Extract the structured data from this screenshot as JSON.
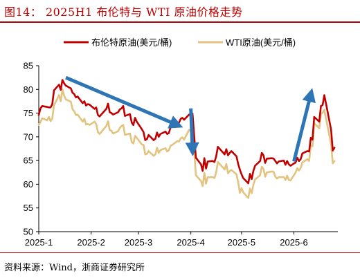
{
  "figure": {
    "title": "图14：  2025H1 布伦特与 WTI 原油价格走势",
    "source": "资料来源：Wind，浙商证券研究所"
  },
  "colors": {
    "brent": "#c00000",
    "wti": "#e2c37f",
    "arrow": "#2e75b6",
    "rule": "#b30000"
  },
  "chart_data": {
    "type": "line",
    "title": "",
    "xlabel": "",
    "ylabel": "",
    "ylim": [
      50,
      85
    ],
    "yticks": [
      50,
      55,
      60,
      65,
      70,
      75,
      80,
      85
    ],
    "x_range": [
      "2025-01-01",
      "2025-06-27"
    ],
    "xticks": [
      {
        "date": "2025-01-01",
        "label": "2025-1"
      },
      {
        "date": "2025-02-01",
        "label": "2025-2"
      },
      {
        "date": "2025-03-01",
        "label": "2025-3"
      },
      {
        "date": "2025-04-01",
        "label": "2025-4"
      },
      {
        "date": "2025-05-01",
        "label": "2025-5"
      },
      {
        "date": "2025-06-01",
        "label": "2025-6"
      }
    ],
    "grid": false,
    "legend": "top",
    "series": [
      {
        "name": "布伦特原油(美元/桶)",
        "color": "#c00000",
        "points": [
          [
            "2025-01-01",
            74.6
          ],
          [
            "2025-01-02",
            76.0
          ],
          [
            "2025-01-03",
            76.5
          ],
          [
            "2025-01-06",
            76.3
          ],
          [
            "2025-01-07",
            76.2
          ],
          [
            "2025-01-08",
            76.2
          ],
          [
            "2025-01-09",
            76.9
          ],
          [
            "2025-01-10",
            79.8
          ],
          [
            "2025-01-13",
            81.0
          ],
          [
            "2025-01-14",
            79.9
          ],
          [
            "2025-01-15",
            82.0
          ],
          [
            "2025-01-16",
            81.3
          ],
          [
            "2025-01-17",
            80.8
          ],
          [
            "2025-01-20",
            80.2
          ],
          [
            "2025-01-21",
            79.3
          ],
          [
            "2025-01-22",
            79.0
          ],
          [
            "2025-01-23",
            78.3
          ],
          [
            "2025-01-24",
            78.5
          ],
          [
            "2025-01-27",
            77.1
          ],
          [
            "2025-01-28",
            77.5
          ],
          [
            "2025-01-29",
            76.6
          ],
          [
            "2025-01-30",
            76.9
          ],
          [
            "2025-01-31",
            76.8
          ],
          [
            "2025-02-03",
            75.9
          ],
          [
            "2025-02-04",
            76.2
          ],
          [
            "2025-02-05",
            74.6
          ],
          [
            "2025-02-06",
            74.3
          ],
          [
            "2025-02-07",
            74.7
          ],
          [
            "2025-02-10",
            75.9
          ],
          [
            "2025-02-11",
            77.0
          ],
          [
            "2025-02-12",
            75.2
          ],
          [
            "2025-02-13",
            75.0
          ],
          [
            "2025-02-14",
            74.7
          ],
          [
            "2025-02-17",
            75.2
          ],
          [
            "2025-02-18",
            75.8
          ],
          [
            "2025-02-19",
            76.0
          ],
          [
            "2025-02-20",
            76.5
          ],
          [
            "2025-02-21",
            74.4
          ],
          [
            "2025-02-24",
            74.8
          ],
          [
            "2025-02-25",
            73.0
          ],
          [
            "2025-02-26",
            72.5
          ],
          [
            "2025-02-27",
            74.0
          ],
          [
            "2025-02-28",
            73.2
          ],
          [
            "2025-03-03",
            71.6
          ],
          [
            "2025-03-04",
            71.0
          ],
          [
            "2025-03-05",
            69.3
          ],
          [
            "2025-03-06",
            69.5
          ],
          [
            "2025-03-07",
            70.4
          ],
          [
            "2025-03-10",
            69.3
          ],
          [
            "2025-03-11",
            69.6
          ],
          [
            "2025-03-12",
            70.9
          ],
          [
            "2025-03-13",
            70.0
          ],
          [
            "2025-03-14",
            70.6
          ],
          [
            "2025-03-17",
            71.1
          ],
          [
            "2025-03-18",
            70.6
          ],
          [
            "2025-03-19",
            70.8
          ],
          [
            "2025-03-20",
            72.0
          ],
          [
            "2025-03-21",
            72.2
          ],
          [
            "2025-03-24",
            72.2
          ],
          [
            "2025-03-25",
            73.0
          ],
          [
            "2025-03-26",
            73.8
          ],
          [
            "2025-03-27",
            74.0
          ],
          [
            "2025-03-28",
            73.6
          ],
          [
            "2025-03-31",
            74.7
          ],
          [
            "2025-04-01",
            74.5
          ],
          [
            "2025-04-02",
            74.9
          ],
          [
            "2025-04-03",
            70.1
          ],
          [
            "2025-04-04",
            65.6
          ],
          [
            "2025-04-07",
            64.2
          ],
          [
            "2025-04-08",
            62.8
          ],
          [
            "2025-04-09",
            65.5
          ],
          [
            "2025-04-10",
            63.3
          ],
          [
            "2025-04-11",
            64.8
          ],
          [
            "2025-04-14",
            64.9
          ],
          [
            "2025-04-15",
            64.7
          ],
          [
            "2025-04-16",
            65.9
          ],
          [
            "2025-04-17",
            67.9
          ],
          [
            "2025-04-21",
            66.3
          ],
          [
            "2025-04-22",
            67.4
          ],
          [
            "2025-04-23",
            66.1
          ],
          [
            "2025-04-24",
            66.6
          ],
          [
            "2025-04-25",
            67.0
          ],
          [
            "2025-04-28",
            65.9
          ],
          [
            "2025-04-29",
            64.3
          ],
          [
            "2025-04-30",
            63.1
          ],
          [
            "2025-05-01",
            62.1
          ],
          [
            "2025-05-02",
            61.3
          ],
          [
            "2025-05-05",
            60.2
          ],
          [
            "2025-05-06",
            62.2
          ],
          [
            "2025-05-07",
            61.1
          ],
          [
            "2025-05-08",
            62.8
          ],
          [
            "2025-05-09",
            63.9
          ],
          [
            "2025-05-12",
            64.9
          ],
          [
            "2025-05-13",
            66.6
          ],
          [
            "2025-05-14",
            66.1
          ],
          [
            "2025-05-15",
            64.5
          ],
          [
            "2025-05-16",
            65.4
          ],
          [
            "2025-05-19",
            65.5
          ],
          [
            "2025-05-20",
            65.4
          ],
          [
            "2025-05-21",
            64.9
          ],
          [
            "2025-05-22",
            64.4
          ],
          [
            "2025-05-23",
            64.8
          ],
          [
            "2025-05-26",
            65.0
          ],
          [
            "2025-05-27",
            64.1
          ],
          [
            "2025-05-28",
            64.9
          ],
          [
            "2025-05-29",
            64.2
          ],
          [
            "2025-05-30",
            63.9
          ],
          [
            "2025-06-02",
            64.6
          ],
          [
            "2025-06-03",
            65.6
          ],
          [
            "2025-06-04",
            64.9
          ],
          [
            "2025-06-05",
            65.3
          ],
          [
            "2025-06-06",
            66.5
          ],
          [
            "2025-06-09",
            67.0
          ],
          [
            "2025-06-10",
            66.9
          ],
          [
            "2025-06-11",
            69.8
          ],
          [
            "2025-06-12",
            69.4
          ],
          [
            "2025-06-13",
            74.2
          ],
          [
            "2025-06-16",
            73.2
          ],
          [
            "2025-06-17",
            76.5
          ],
          [
            "2025-06-18",
            76.7
          ],
          [
            "2025-06-19",
            78.8
          ],
          [
            "2025-06-20",
            77.0
          ],
          [
            "2025-06-23",
            71.5
          ],
          [
            "2025-06-24",
            67.1
          ],
          [
            "2025-06-25",
            67.7
          ]
        ]
      },
      {
        "name": "WTI原油(美元/桶)",
        "color": "#e2c37f",
        "points": [
          [
            "2025-01-01",
            72.5
          ],
          [
            "2025-01-02",
            73.1
          ],
          [
            "2025-01-03",
            73.9
          ],
          [
            "2025-01-06",
            73.5
          ],
          [
            "2025-01-07",
            74.2
          ],
          [
            "2025-01-08",
            73.3
          ],
          [
            "2025-01-09",
            73.9
          ],
          [
            "2025-01-10",
            76.6
          ],
          [
            "2025-01-13",
            78.8
          ],
          [
            "2025-01-14",
            77.5
          ],
          [
            "2025-01-15",
            80.0
          ],
          [
            "2025-01-16",
            78.7
          ],
          [
            "2025-01-17",
            77.9
          ],
          [
            "2025-01-20",
            77.4
          ],
          [
            "2025-01-21",
            75.8
          ],
          [
            "2025-01-22",
            75.4
          ],
          [
            "2025-01-23",
            74.6
          ],
          [
            "2025-01-24",
            74.7
          ],
          [
            "2025-01-27",
            73.2
          ],
          [
            "2025-01-28",
            73.8
          ],
          [
            "2025-01-29",
            72.6
          ],
          [
            "2025-01-30",
            72.7
          ],
          [
            "2025-01-31",
            72.5
          ],
          [
            "2025-02-03",
            73.2
          ],
          [
            "2025-02-04",
            72.7
          ],
          [
            "2025-02-05",
            71.0
          ],
          [
            "2025-02-06",
            70.6
          ],
          [
            "2025-02-07",
            71.0
          ],
          [
            "2025-02-10",
            72.3
          ],
          [
            "2025-02-11",
            73.3
          ],
          [
            "2025-02-12",
            71.4
          ],
          [
            "2025-02-13",
            71.3
          ],
          [
            "2025-02-14",
            70.7
          ],
          [
            "2025-02-17",
            71.2
          ],
          [
            "2025-02-18",
            71.9
          ],
          [
            "2025-02-19",
            72.3
          ],
          [
            "2025-02-20",
            72.5
          ],
          [
            "2025-02-21",
            70.4
          ],
          [
            "2025-02-24",
            70.7
          ],
          [
            "2025-02-25",
            68.9
          ],
          [
            "2025-02-26",
            68.6
          ],
          [
            "2025-02-27",
            70.2
          ],
          [
            "2025-02-28",
            69.8
          ],
          [
            "2025-03-03",
            68.4
          ],
          [
            "2025-03-04",
            68.3
          ],
          [
            "2025-03-05",
            66.3
          ],
          [
            "2025-03-06",
            66.4
          ],
          [
            "2025-03-07",
            67.0
          ],
          [
            "2025-03-10",
            66.0
          ],
          [
            "2025-03-11",
            66.3
          ],
          [
            "2025-03-12",
            67.7
          ],
          [
            "2025-03-13",
            66.6
          ],
          [
            "2025-03-14",
            67.2
          ],
          [
            "2025-03-17",
            67.6
          ],
          [
            "2025-03-18",
            66.9
          ],
          [
            "2025-03-19",
            67.2
          ],
          [
            "2025-03-20",
            68.1
          ],
          [
            "2025-03-21",
            68.3
          ],
          [
            "2025-03-24",
            69.1
          ],
          [
            "2025-03-25",
            69.0
          ],
          [
            "2025-03-26",
            69.7
          ],
          [
            "2025-03-27",
            69.9
          ],
          [
            "2025-03-28",
            69.4
          ],
          [
            "2025-03-31",
            71.5
          ],
          [
            "2025-04-01",
            71.2
          ],
          [
            "2025-04-02",
            71.7
          ],
          [
            "2025-04-03",
            66.9
          ],
          [
            "2025-04-04",
            61.9
          ],
          [
            "2025-04-07",
            60.7
          ],
          [
            "2025-04-08",
            59.6
          ],
          [
            "2025-04-09",
            62.4
          ],
          [
            "2025-04-10",
            60.1
          ],
          [
            "2025-04-11",
            61.5
          ],
          [
            "2025-04-14",
            61.5
          ],
          [
            "2025-04-15",
            61.3
          ],
          [
            "2025-04-16",
            62.5
          ],
          [
            "2025-04-17",
            64.7
          ],
          [
            "2025-04-21",
            63.1
          ],
          [
            "2025-04-22",
            64.3
          ],
          [
            "2025-04-23",
            62.3
          ],
          [
            "2025-04-24",
            62.8
          ],
          [
            "2025-04-25",
            63.0
          ],
          [
            "2025-04-28",
            62.1
          ],
          [
            "2025-04-29",
            60.4
          ],
          [
            "2025-04-30",
            58.2
          ],
          [
            "2025-05-01",
            59.2
          ],
          [
            "2025-05-02",
            58.3
          ],
          [
            "2025-05-05",
            57.1
          ],
          [
            "2025-05-06",
            59.1
          ],
          [
            "2025-05-07",
            58.1
          ],
          [
            "2025-05-08",
            59.9
          ],
          [
            "2025-05-09",
            61.0
          ],
          [
            "2025-05-12",
            61.9
          ],
          [
            "2025-05-13",
            63.7
          ],
          [
            "2025-05-14",
            63.2
          ],
          [
            "2025-05-15",
            61.6
          ],
          [
            "2025-05-16",
            62.5
          ],
          [
            "2025-05-19",
            62.7
          ],
          [
            "2025-05-20",
            62.6
          ],
          [
            "2025-05-21",
            61.6
          ],
          [
            "2025-05-22",
            61.2
          ],
          [
            "2025-05-23",
            61.5
          ],
          [
            "2025-05-26",
            61.5
          ],
          [
            "2025-05-27",
            60.9
          ],
          [
            "2025-05-28",
            61.8
          ],
          [
            "2025-05-29",
            60.9
          ],
          [
            "2025-05-30",
            60.8
          ],
          [
            "2025-06-02",
            62.5
          ],
          [
            "2025-06-03",
            63.4
          ],
          [
            "2025-06-04",
            62.9
          ],
          [
            "2025-06-05",
            63.4
          ],
          [
            "2025-06-06",
            64.6
          ],
          [
            "2025-06-09",
            65.3
          ],
          [
            "2025-06-10",
            64.9
          ],
          [
            "2025-06-11",
            68.2
          ],
          [
            "2025-06-12",
            68.0
          ],
          [
            "2025-06-13",
            72.9
          ],
          [
            "2025-06-16",
            71.8
          ],
          [
            "2025-06-17",
            74.8
          ],
          [
            "2025-06-18",
            75.1
          ],
          [
            "2025-06-19",
            75.7
          ],
          [
            "2025-06-20",
            73.8
          ],
          [
            "2025-06-23",
            68.5
          ],
          [
            "2025-06-24",
            64.4
          ],
          [
            "2025-06-25",
            64.9
          ]
        ]
      }
    ],
    "annotations": [
      {
        "type": "arrow",
        "from": [
          "2025-01-17",
          82.5
        ],
        "to": [
          "2025-03-24",
          72.5
        ]
      },
      {
        "type": "arrow",
        "from": [
          "2025-04-01",
          76.0
        ],
        "to": [
          "2025-04-02",
          67.2
        ]
      },
      {
        "type": "arrow",
        "from": [
          "2025-06-01",
          64.8
        ],
        "to": [
          "2025-06-11",
          79.0
        ]
      }
    ]
  }
}
